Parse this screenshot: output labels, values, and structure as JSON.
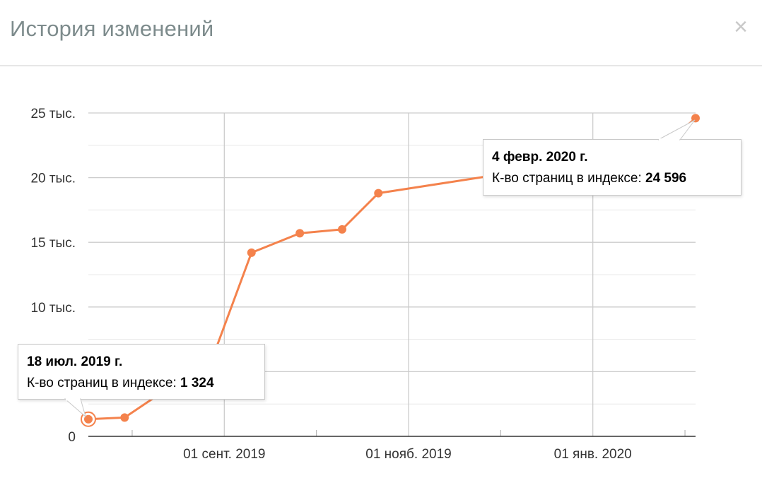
{
  "header": {
    "title": "История изменений",
    "close_label": "×"
  },
  "colors": {
    "line": "#f4824c",
    "grid": "#cccccc",
    "grid_minor": "#e8e8e8",
    "axis": "#333333"
  },
  "chart_data": {
    "type": "line",
    "title": "",
    "xlabel": "",
    "ylabel": "",
    "x_range": [
      "2019-07-18",
      "2020-02-04"
    ],
    "ylim": [
      0,
      25000
    ],
    "grid": true,
    "y_ticks": [
      {
        "value": 0,
        "label": "0"
      },
      {
        "value": 10000,
        "label": "10 тыс."
      },
      {
        "value": 15000,
        "label": "15 тыс."
      },
      {
        "value": 20000,
        "label": "20 тыс."
      },
      {
        "value": 25000,
        "label": "25 тыс."
      }
    ],
    "x_ticks": [
      {
        "date": "2019-09-01",
        "label": "01 сент. 2019"
      },
      {
        "date": "2019-11-01",
        "label": "01 нояб. 2019"
      },
      {
        "date": "2020-01-01",
        "label": "01 янв. 2020"
      }
    ],
    "series": [
      {
        "points": [
          {
            "x": "2019-07-18",
            "y": 1324
          },
          {
            "x": "2019-07-30",
            "y": 1450
          },
          {
            "x": "2019-08-28",
            "y": 6000
          },
          {
            "x": "2019-09-10",
            "y": 14200
          },
          {
            "x": "2019-09-26",
            "y": 15700
          },
          {
            "x": "2019-10-10",
            "y": 16000
          },
          {
            "x": "2019-10-22",
            "y": 18800
          },
          {
            "x": "2019-11-30",
            "y": 20200
          },
          {
            "x": "2020-01-20",
            "y": 21600
          },
          {
            "x": "2020-02-04",
            "y": 24596
          }
        ]
      }
    ],
    "tooltips": [
      {
        "date_label": "18 июл. 2019 г.",
        "metric_label": "К-во страниц в индексе:",
        "value_label": "1 324"
      },
      {
        "date_label": "4 февр. 2020 г.",
        "metric_label": "К-во страниц в индексе:",
        "value_label": "24 596"
      }
    ]
  }
}
